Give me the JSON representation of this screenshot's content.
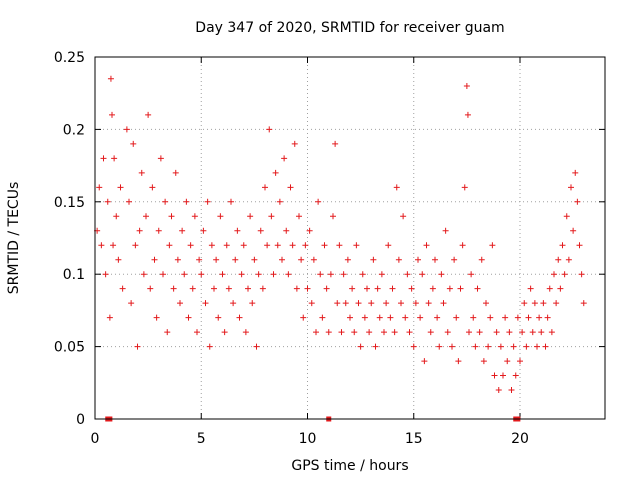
{
  "chart_data": {
    "type": "scatter",
    "title": "Day 347 of 2020, SRMTID for receiver guam",
    "xlabel": "GPS time / hours",
    "ylabel": "SRMTID / TECUs",
    "xlim": [
      0,
      24
    ],
    "ylim": [
      0,
      0.25
    ],
    "xticks": [
      0,
      5,
      10,
      15,
      20
    ],
    "xtick_labels": [
      "0",
      "5",
      "10",
      "15",
      "20"
    ],
    "yticks": [
      0,
      0.05,
      0.1,
      0.15,
      0.2,
      0.25
    ],
    "ytick_labels": [
      "0",
      "0.05",
      "0.1",
      "0.15",
      "0.2",
      "0.25"
    ],
    "grid": true,
    "marker": "+",
    "series_color": "#e31a1c",
    "data_gap_markers_x": [
      0.6,
      0.7,
      11.0,
      19.8,
      19.9
    ],
    "points": [
      [
        0.1,
        0.13
      ],
      [
        0.2,
        0.16
      ],
      [
        0.3,
        0.12
      ],
      [
        0.4,
        0.18
      ],
      [
        0.5,
        0.1
      ],
      [
        0.6,
        0.15
      ],
      [
        0.7,
        0.07
      ],
      [
        0.75,
        0.235
      ],
      [
        0.8,
        0.21
      ],
      [
        0.85,
        0.12
      ],
      [
        0.9,
        0.18
      ],
      [
        1.0,
        0.14
      ],
      [
        1.1,
        0.11
      ],
      [
        1.2,
        0.16
      ],
      [
        1.3,
        0.09
      ],
      [
        1.5,
        0.2
      ],
      [
        1.6,
        0.15
      ],
      [
        1.7,
        0.08
      ],
      [
        1.8,
        0.19
      ],
      [
        1.9,
        0.12
      ],
      [
        2.0,
        0.05
      ],
      [
        2.1,
        0.13
      ],
      [
        2.2,
        0.17
      ],
      [
        2.3,
        0.1
      ],
      [
        2.4,
        0.14
      ],
      [
        2.5,
        0.21
      ],
      [
        2.6,
        0.09
      ],
      [
        2.7,
        0.16
      ],
      [
        2.8,
        0.11
      ],
      [
        2.9,
        0.07
      ],
      [
        3.0,
        0.13
      ],
      [
        3.1,
        0.18
      ],
      [
        3.2,
        0.1
      ],
      [
        3.3,
        0.15
      ],
      [
        3.4,
        0.06
      ],
      [
        3.5,
        0.12
      ],
      [
        3.6,
        0.14
      ],
      [
        3.7,
        0.09
      ],
      [
        3.8,
        0.17
      ],
      [
        3.9,
        0.11
      ],
      [
        4.0,
        0.08
      ],
      [
        4.1,
        0.13
      ],
      [
        4.2,
        0.1
      ],
      [
        4.3,
        0.15
      ],
      [
        4.4,
        0.07
      ],
      [
        4.5,
        0.12
      ],
      [
        4.6,
        0.09
      ],
      [
        4.7,
        0.14
      ],
      [
        4.8,
        0.06
      ],
      [
        4.9,
        0.11
      ],
      [
        5.0,
        0.1
      ],
      [
        5.1,
        0.13
      ],
      [
        5.2,
        0.08
      ],
      [
        5.3,
        0.15
      ],
      [
        5.4,
        0.05
      ],
      [
        5.5,
        0.12
      ],
      [
        5.6,
        0.09
      ],
      [
        5.7,
        0.11
      ],
      [
        5.8,
        0.07
      ],
      [
        5.9,
        0.14
      ],
      [
        6.0,
        0.1
      ],
      [
        6.1,
        0.06
      ],
      [
        6.2,
        0.12
      ],
      [
        6.3,
        0.09
      ],
      [
        6.4,
        0.15
      ],
      [
        6.5,
        0.08
      ],
      [
        6.6,
        0.11
      ],
      [
        6.7,
        0.13
      ],
      [
        6.8,
        0.07
      ],
      [
        6.9,
        0.1
      ],
      [
        7.0,
        0.12
      ],
      [
        7.1,
        0.06
      ],
      [
        7.2,
        0.09
      ],
      [
        7.3,
        0.14
      ],
      [
        7.4,
        0.08
      ],
      [
        7.5,
        0.11
      ],
      [
        7.6,
        0.05
      ],
      [
        7.7,
        0.1
      ],
      [
        7.8,
        0.13
      ],
      [
        7.9,
        0.09
      ],
      [
        8.0,
        0.16
      ],
      [
        8.1,
        0.12
      ],
      [
        8.2,
        0.2
      ],
      [
        8.3,
        0.14
      ],
      [
        8.4,
        0.1
      ],
      [
        8.5,
        0.17
      ],
      [
        8.6,
        0.12
      ],
      [
        8.7,
        0.15
      ],
      [
        8.8,
        0.11
      ],
      [
        8.9,
        0.18
      ],
      [
        9.0,
        0.13
      ],
      [
        9.1,
        0.1
      ],
      [
        9.2,
        0.16
      ],
      [
        9.3,
        0.12
      ],
      [
        9.4,
        0.19
      ],
      [
        9.5,
        0.09
      ],
      [
        9.6,
        0.14
      ],
      [
        9.7,
        0.11
      ],
      [
        9.8,
        0.07
      ],
      [
        9.9,
        0.12
      ],
      [
        10.0,
        0.09
      ],
      [
        10.1,
        0.13
      ],
      [
        10.2,
        0.08
      ],
      [
        10.3,
        0.11
      ],
      [
        10.4,
        0.06
      ],
      [
        10.5,
        0.15
      ],
      [
        10.6,
        0.1
      ],
      [
        10.7,
        0.07
      ],
      [
        10.8,
        0.12
      ],
      [
        10.9,
        0.09
      ],
      [
        11.0,
        0.06
      ],
      [
        11.1,
        0.1
      ],
      [
        11.2,
        0.14
      ],
      [
        11.3,
        0.19
      ],
      [
        11.4,
        0.08
      ],
      [
        11.5,
        0.12
      ],
      [
        11.6,
        0.06
      ],
      [
        11.7,
        0.1
      ],
      [
        11.8,
        0.08
      ],
      [
        11.9,
        0.11
      ],
      [
        12.0,
        0.07
      ],
      [
        12.1,
        0.09
      ],
      [
        12.2,
        0.06
      ],
      [
        12.3,
        0.12
      ],
      [
        12.4,
        0.08
      ],
      [
        12.5,
        0.05
      ],
      [
        12.6,
        0.1
      ],
      [
        12.7,
        0.07
      ],
      [
        12.8,
        0.09
      ],
      [
        12.9,
        0.06
      ],
      [
        13.0,
        0.08
      ],
      [
        13.1,
        0.11
      ],
      [
        13.2,
        0.05
      ],
      [
        13.3,
        0.09
      ],
      [
        13.4,
        0.07
      ],
      [
        13.5,
        0.1
      ],
      [
        13.6,
        0.06
      ],
      [
        13.7,
        0.08
      ],
      [
        13.8,
        0.12
      ],
      [
        13.9,
        0.07
      ],
      [
        14.0,
        0.09
      ],
      [
        14.1,
        0.06
      ],
      [
        14.2,
        0.16
      ],
      [
        14.3,
        0.11
      ],
      [
        14.4,
        0.08
      ],
      [
        14.5,
        0.14
      ],
      [
        14.6,
        0.07
      ],
      [
        14.7,
        0.1
      ],
      [
        14.8,
        0.06
      ],
      [
        14.9,
        0.09
      ],
      [
        15.0,
        0.05
      ],
      [
        15.1,
        0.08
      ],
      [
        15.2,
        0.11
      ],
      [
        15.3,
        0.07
      ],
      [
        15.4,
        0.1
      ],
      [
        15.5,
        0.04
      ],
      [
        15.6,
        0.12
      ],
      [
        15.7,
        0.08
      ],
      [
        15.8,
        0.06
      ],
      [
        15.9,
        0.09
      ],
      [
        16.0,
        0.11
      ],
      [
        16.1,
        0.07
      ],
      [
        16.2,
        0.05
      ],
      [
        16.3,
        0.1
      ],
      [
        16.4,
        0.08
      ],
      [
        16.5,
        0.13
      ],
      [
        16.6,
        0.06
      ],
      [
        16.7,
        0.09
      ],
      [
        16.8,
        0.05
      ],
      [
        16.9,
        0.11
      ],
      [
        17.0,
        0.07
      ],
      [
        17.1,
        0.04
      ],
      [
        17.2,
        0.09
      ],
      [
        17.3,
        0.12
      ],
      [
        17.4,
        0.16
      ],
      [
        17.5,
        0.23
      ],
      [
        17.55,
        0.21
      ],
      [
        17.6,
        0.06
      ],
      [
        17.7,
        0.1
      ],
      [
        17.8,
        0.07
      ],
      [
        17.9,
        0.05
      ],
      [
        18.0,
        0.09
      ],
      [
        18.1,
        0.06
      ],
      [
        18.2,
        0.11
      ],
      [
        18.3,
        0.04
      ],
      [
        18.4,
        0.08
      ],
      [
        18.5,
        0.05
      ],
      [
        18.6,
        0.07
      ],
      [
        18.7,
        0.12
      ],
      [
        18.8,
        0.03
      ],
      [
        18.9,
        0.06
      ],
      [
        19.0,
        0.02
      ],
      [
        19.1,
        0.05
      ],
      [
        19.2,
        0.03
      ],
      [
        19.3,
        0.07
      ],
      [
        19.4,
        0.04
      ],
      [
        19.5,
        0.06
      ],
      [
        19.6,
        0.02
      ],
      [
        19.7,
        0.05
      ],
      [
        19.8,
        0.03
      ],
      [
        19.9,
        0.07
      ],
      [
        20.0,
        0.04
      ],
      [
        20.1,
        0.06
      ],
      [
        20.2,
        0.08
      ],
      [
        20.3,
        0.05
      ],
      [
        20.4,
        0.07
      ],
      [
        20.5,
        0.09
      ],
      [
        20.6,
        0.06
      ],
      [
        20.7,
        0.08
      ],
      [
        20.8,
        0.05
      ],
      [
        20.9,
        0.07
      ],
      [
        21.0,
        0.06
      ],
      [
        21.1,
        0.08
      ],
      [
        21.2,
        0.05
      ],
      [
        21.3,
        0.07
      ],
      [
        21.4,
        0.09
      ],
      [
        21.5,
        0.06
      ],
      [
        21.6,
        0.1
      ],
      [
        21.7,
        0.08
      ],
      [
        21.8,
        0.11
      ],
      [
        21.9,
        0.09
      ],
      [
        22.0,
        0.12
      ],
      [
        22.1,
        0.1
      ],
      [
        22.2,
        0.14
      ],
      [
        22.3,
        0.11
      ],
      [
        22.4,
        0.16
      ],
      [
        22.5,
        0.13
      ],
      [
        22.6,
        0.17
      ],
      [
        22.7,
        0.15
      ],
      [
        22.8,
        0.12
      ],
      [
        22.9,
        0.1
      ],
      [
        23.0,
        0.08
      ]
    ]
  }
}
